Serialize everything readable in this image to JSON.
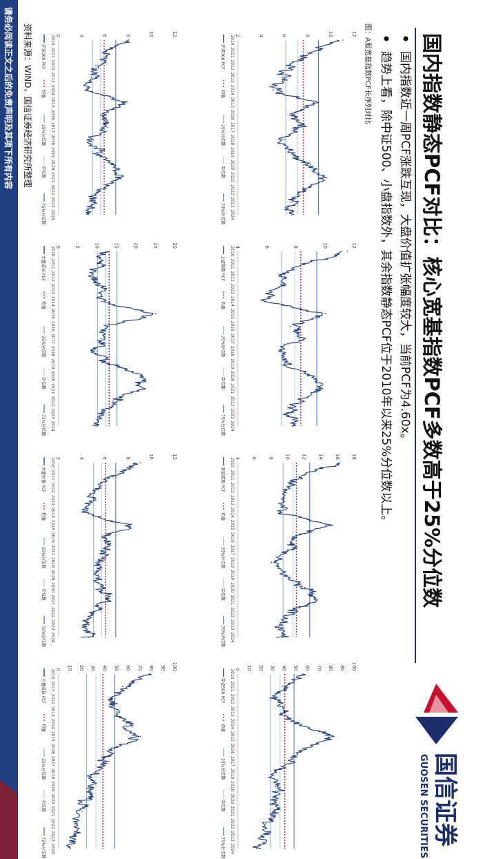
{
  "header": {
    "title": "国内指数静态PCF对比：核心宽基指数PCF多数高于25%分位数",
    "bullets": [
      "国内指数近一周PCF涨跌互现，大盘价值扩张幅度较大，当前PCF为4.60x。",
      "趋势上看，除中证500、小盘指数外，其余指数静态PCF位于2010年以来25%分位数以上。"
    ],
    "figure_caption": "图：A股宽基指数PCF长序列对比"
  },
  "brand": {
    "name_cn": "国信证券",
    "name_en": "GUOSEN SECURITIES",
    "colors": {
      "red": "#c8102e",
      "navy": "#1a2f6b"
    }
  },
  "footer": {
    "source": "资料来源：WIND，国信证券经济研究所整理",
    "disclaimer": "请务必阅读正文之后的免责声明及其项下所有内容"
  },
  "colors": {
    "series": "#1f3d7a",
    "mean": "#c0282d",
    "p25": "#8fb2d8",
    "median": "#b8cde6",
    "p75": "#4a78b8",
    "footer_bg": "#1f3f80"
  },
  "legend_labels": {
    "mean": "均值",
    "p25": "25%分位数",
    "median": "中位数",
    "p75": "75%分位数"
  },
  "x_tick_labels": [
    "2010",
    "2011",
    "2012",
    "2013",
    "2014",
    "2015",
    "2016",
    "2017",
    "2018",
    "2019",
    "2020",
    "2021",
    "2022",
    "2023",
    "2024"
  ],
  "chart_data": [
    {
      "type": "line",
      "series_name": "沪深300 PCF",
      "ylim": [
        2,
        12
      ],
      "yticks": [
        2,
        4,
        6,
        8,
        10,
        12
      ],
      "x": [
        "2010",
        "2011",
        "2012",
        "2013",
        "2014",
        "2015",
        "2016",
        "2017",
        "2018",
        "2019",
        "2020",
        "2021",
        "2022",
        "2023",
        "2024"
      ],
      "values": [
        11.0,
        8.0,
        6.5,
        5.8,
        5.0,
        8.5,
        6.4,
        7.2,
        6.0,
        6.3,
        8.2,
        9.6,
        7.6,
        6.5,
        6.6
      ],
      "mean": 7.6,
      "p25": 6.1,
      "median": 7.1,
      "p75": 8.9
    },
    {
      "type": "line",
      "series_name": "上证指数 PCF",
      "ylim": [
        4,
        12
      ],
      "yticks": [
        4,
        6,
        8,
        10,
        12
      ],
      "x": [
        "2010",
        "2011",
        "2012",
        "2013",
        "2014",
        "2015",
        "2016",
        "2017",
        "2018",
        "2019",
        "2020",
        "2021",
        "2022",
        "2023",
        "2024"
      ],
      "values": [
        11.5,
        8.6,
        7.2,
        6.6,
        5.8,
        10.0,
        7.6,
        8.2,
        6.8,
        7.2,
        8.8,
        9.8,
        8.2,
        7.6,
        7.8
      ],
      "mean": 8.3,
      "p25": 7.0,
      "median": 7.9,
      "p75": 9.4
    },
    {
      "type": "line",
      "series_name": "深证成指 PCF",
      "ylim": [
        4,
        18
      ],
      "yticks": [
        4,
        6,
        8,
        10,
        12,
        14,
        16,
        18
      ],
      "x": [
        "2010",
        "2011",
        "2012",
        "2013",
        "2014",
        "2015",
        "2016",
        "2017",
        "2018",
        "2019",
        "2020",
        "2021",
        "2022",
        "2023",
        "2024"
      ],
      "values": [
        16.0,
        12.0,
        10.0,
        9.5,
        9.0,
        14.5,
        11.0,
        10.5,
        8.0,
        9.5,
        12.0,
        13.5,
        10.0,
        9.0,
        9.3
      ],
      "mean": 11.0,
      "p25": 9.4,
      "median": 10.6,
      "p75": 12.6
    },
    {
      "type": "line",
      "series_name": "中证500 PCF",
      "ylim": [
        0,
        100
      ],
      "yticks": [
        0,
        10,
        20,
        30,
        40,
        50,
        60,
        70,
        80,
        90,
        100
      ],
      "x": [
        "2010",
        "2011",
        "2012",
        "2013",
        "2014",
        "2015",
        "2016",
        "2017",
        "2018",
        "2019",
        "2020",
        "2021",
        "2022",
        "2023",
        "2024"
      ],
      "values": [
        55,
        38,
        32,
        40,
        48,
        82,
        55,
        45,
        30,
        32,
        34,
        30,
        24,
        20,
        16
      ],
      "mean": 40,
      "p25": 28,
      "median": 36,
      "p75": 48
    },
    {
      "type": "line",
      "series_name": "沪深300 PCF",
      "ylim": [
        2,
        12
      ],
      "yticks": [
        2,
        4,
        6,
        8,
        10,
        12
      ],
      "x": [
        "2010",
        "2011",
        "2012",
        "2013",
        "2014",
        "2015",
        "2016",
        "2017",
        "2018",
        "2019",
        "2020",
        "2021",
        "2022",
        "2023",
        "2024"
      ],
      "values": [
        8.0,
        6.0,
        5.2,
        4.8,
        4.3,
        7.5,
        5.6,
        6.2,
        5.0,
        5.3,
        6.8,
        7.0,
        5.4,
        4.8,
        4.6
      ],
      "mean": 5.9,
      "p25": 4.9,
      "median": 5.6,
      "p75": 6.9
    },
    {
      "type": "line",
      "series_name": "大盘成长 PCF",
      "ylim": [
        0,
        30
      ],
      "yticks": [
        0,
        5,
        10,
        15,
        20,
        25,
        30
      ],
      "x": [
        "2010",
        "2011",
        "2012",
        "2013",
        "2014",
        "2015",
        "2016",
        "2017",
        "2018",
        "2019",
        "2020",
        "2021",
        "2022",
        "2023",
        "2024"
      ],
      "values": [
        12,
        10,
        9,
        12,
        11,
        25,
        13,
        11,
        10,
        13,
        21,
        22,
        14,
        11,
        10
      ],
      "mean": 13,
      "p25": 10,
      "median": 12,
      "p75": 15
    },
    {
      "type": "line",
      "series_name": "大盘价值 PCF",
      "ylim": [
        2,
        12
      ],
      "yticks": [
        2,
        4,
        6,
        8,
        10,
        12
      ],
      "x": [
        "2010",
        "2011",
        "2012",
        "2013",
        "2014",
        "2015",
        "2016",
        "2017",
        "2018",
        "2019",
        "2020",
        "2021",
        "2022",
        "2023",
        "2024"
      ],
      "values": [
        9.0,
        6.5,
        5.5,
        5.0,
        4.5,
        8.0,
        6.0,
        6.4,
        5.2,
        5.4,
        5.8,
        6.2,
        5.0,
        4.6,
        4.6
      ],
      "mean": 6.0,
      "p25": 5.0,
      "median": 5.7,
      "p75": 6.9
    },
    {
      "type": "line",
      "series_name": "小盘成长 PCF",
      "ylim": [
        0,
        100
      ],
      "yticks": [
        0,
        10,
        20,
        30,
        40,
        50,
        60,
        70,
        80,
        90,
        100
      ],
      "x": [
        "2010",
        "2011",
        "2012",
        "2013",
        "2014",
        "2015",
        "2016",
        "2017",
        "2018",
        "2019",
        "2020",
        "2021",
        "2022",
        "2023",
        "2024"
      ],
      "values": [
        78,
        55,
        45,
        50,
        58,
        70,
        48,
        40,
        30,
        28,
        24,
        20,
        14,
        12,
        10
      ],
      "mean": 38,
      "p25": 24,
      "median": 32,
      "p75": 48
    }
  ]
}
